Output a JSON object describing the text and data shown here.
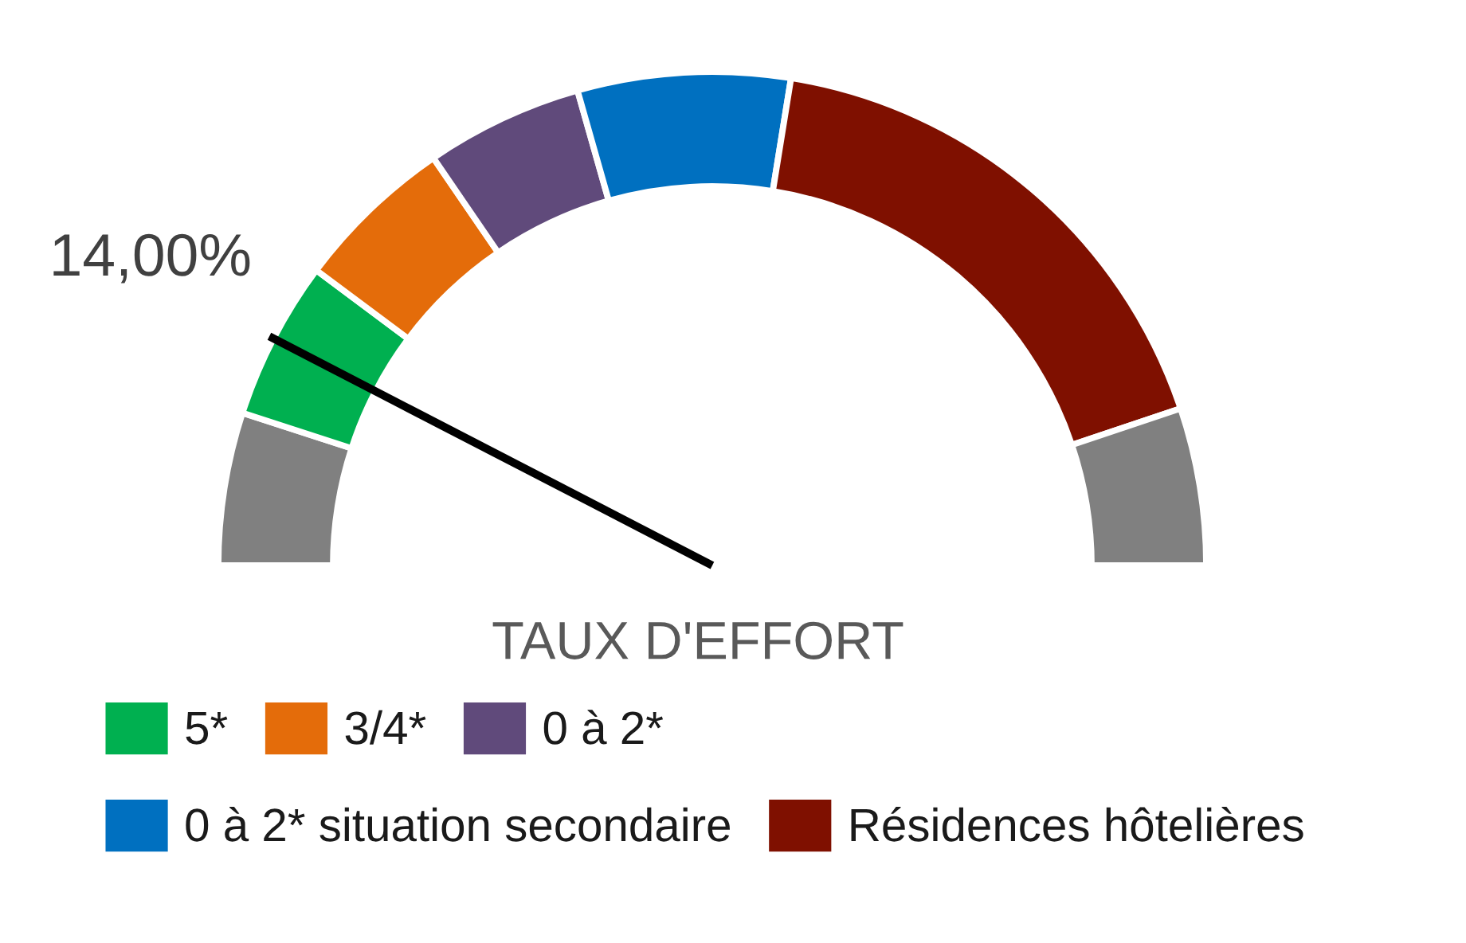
{
  "chart_data": {
    "type": "donut",
    "title": "TAUX D'EFFORT",
    "categories": [
      null,
      "5*",
      "3/4*",
      "0 à 2*",
      "0 à 2* situation secondaire",
      "Résidences hôtelières",
      null
    ],
    "values": [
      10,
      10.4,
      10.5,
      10.3,
      13.9,
      34.6,
      10.3
    ],
    "colors": [
      "#808080",
      "#00b050",
      "#e46c0a",
      "#604a7b",
      "#0070c0",
      "#7f1000",
      "#808080"
    ],
    "needle": "5*",
    "annotations": [
      "14,00%"
    ],
    "legend": "bottom"
  }
}
